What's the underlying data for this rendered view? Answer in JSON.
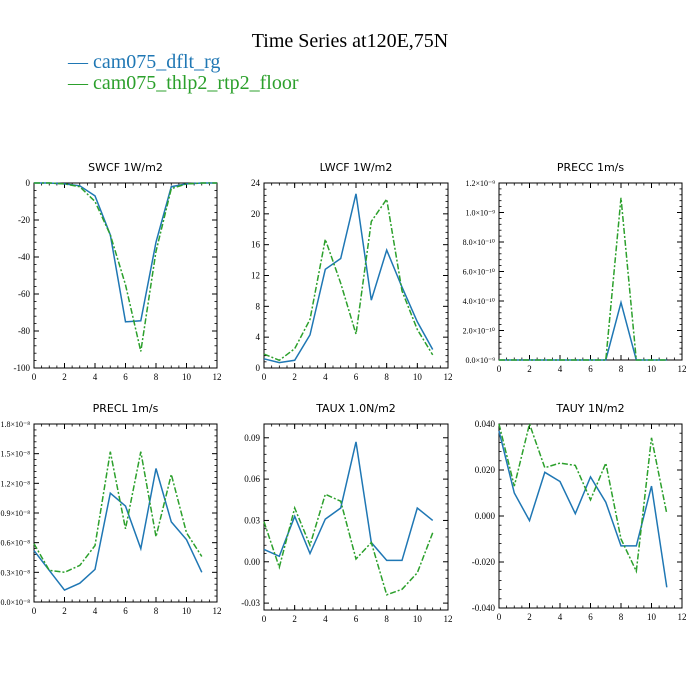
{
  "title": "Time Series at120E,75N",
  "legend": [
    {
      "label": "cam075_dflt_rg",
      "color": "#1f77b4"
    },
    {
      "label": "cam075_thlp2_rtp2_floor",
      "color": "#2ca02c"
    }
  ],
  "chart_data": [
    {
      "type": "line",
      "title": "SWCF",
      "units": "1W/m2",
      "xlim": [
        0,
        12
      ],
      "ylim": [
        -100,
        0
      ],
      "xticks": [
        0,
        2,
        4,
        6,
        8,
        10,
        12
      ],
      "yticks": [
        "-100",
        "-80",
        "-60",
        "-40",
        "-20",
        "0"
      ],
      "ytick_values": [
        -100,
        -80,
        -60,
        -40,
        -20,
        0
      ],
      "x": [
        0,
        1,
        2,
        3,
        4,
        5,
        6,
        7,
        8,
        9,
        10,
        11,
        12
      ],
      "series": [
        {
          "name": "cam075_dflt_rg",
          "values": [
            0,
            0,
            -0.5,
            -1.5,
            -7,
            -28,
            -75,
            -74.5,
            -32,
            -2,
            -0.5,
            0,
            0
          ]
        },
        {
          "name": "cam075_thlp2_rtp2_floor",
          "values": [
            0,
            0,
            -0.5,
            -2,
            -10,
            -28,
            -55,
            -91,
            -37,
            -3,
            -0.5,
            0,
            0
          ]
        }
      ]
    },
    {
      "type": "line",
      "title": "LWCF",
      "units": "1W/m2",
      "xlim": [
        0,
        12
      ],
      "ylim": [
        0,
        24
      ],
      "xticks": [
        0,
        2,
        4,
        6,
        8,
        10,
        12
      ],
      "yticks": [
        "0",
        "4",
        "8",
        "12",
        "16",
        "20",
        "24"
      ],
      "ytick_values": [
        0,
        4,
        8,
        12,
        16,
        20,
        24
      ],
      "x": [
        0,
        1,
        2,
        3,
        4,
        5,
        6,
        7,
        8,
        9,
        10,
        11
      ],
      "series": [
        {
          "name": "cam075_dflt_rg",
          "values": [
            1.2,
            0.7,
            1,
            4.3,
            12.8,
            14.2,
            22.6,
            8.8,
            15.3,
            10.5,
            6,
            2.4
          ]
        },
        {
          "name": "cam075_thlp2_rtp2_floor",
          "values": [
            1.8,
            1,
            2.5,
            6.3,
            16.7,
            11,
            4.4,
            19,
            21.9,
            10,
            5,
            1.7
          ]
        }
      ]
    },
    {
      "type": "line",
      "title": "PRECC",
      "units": "1m/s",
      "xlim": [
        0,
        12
      ],
      "ylim": [
        0,
        1.2e-09
      ],
      "xticks": [
        0,
        2,
        4,
        6,
        8,
        10,
        12
      ],
      "yticks": [
        "0.0×10⁻⁹",
        "2.0×10⁻¹⁰",
        "4.0×10⁻¹⁰",
        "6.0×10⁻¹⁰",
        "8.0×10⁻¹⁰",
        "1.0×10⁻⁹",
        "1.2×10⁻⁹"
      ],
      "ytick_values": [
        0,
        2e-10,
        4e-10,
        6e-10,
        8e-10,
        1e-09,
        1.2e-09
      ],
      "x": [
        0,
        1,
        2,
        3,
        4,
        5,
        6,
        7,
        8,
        9,
        10,
        11
      ],
      "series": [
        {
          "name": "cam075_dflt_rg",
          "values": [
            0,
            0,
            0,
            0,
            0,
            0,
            0,
            0,
            3.9e-10,
            0,
            0,
            0
          ]
        },
        {
          "name": "cam075_thlp2_rtp2_floor",
          "values": [
            0,
            0,
            0,
            0,
            0,
            0,
            0,
            0,
            1.1e-09,
            0,
            0,
            0
          ]
        }
      ]
    },
    {
      "type": "line",
      "title": "PRECL",
      "units": "1m/s",
      "xlim": [
        0,
        12
      ],
      "ylim": [
        0,
        1.8e-08
      ],
      "xticks": [
        0,
        2,
        4,
        6,
        8,
        10,
        12
      ],
      "yticks": [
        "0.0×10⁻⁸",
        "0.3×10⁻⁸",
        "0.6×10⁻⁸",
        "0.9×10⁻⁸",
        "1.2×10⁻⁸",
        "1.5×10⁻⁸",
        "1.8×10⁻⁸"
      ],
      "ytick_values": [
        0,
        3e-09,
        6e-09,
        9e-09,
        1.2e-08,
        1.5e-08,
        1.8e-08
      ],
      "x": [
        0,
        1,
        2,
        3,
        4,
        5,
        6,
        7,
        8,
        9,
        10,
        11
      ],
      "series": [
        {
          "name": "cam075_dflt_rg",
          "values": [
            5.2e-09,
            3.2e-09,
            1.2e-09,
            1.9e-09,
            3.3e-09,
            1.1e-08,
            9.7e-09,
            5.4e-09,
            1.35e-08,
            8.1e-09,
            6.3e-09,
            3e-09
          ]
        },
        {
          "name": "cam075_thlp2_rtp2_floor",
          "values": [
            5.9e-09,
            3.2e-09,
            3e-09,
            3.7e-09,
            5.7e-09,
            1.52e-08,
            7.4e-09,
            1.52e-08,
            6.6e-09,
            1.29e-08,
            7e-09,
            4.6e-09
          ]
        }
      ]
    },
    {
      "type": "line",
      "title": "TAUX",
      "units": "1.0N/m2",
      "xlim": [
        0,
        12
      ],
      "ylim": [
        -0.035,
        0.1
      ],
      "xticks": [
        0,
        2,
        4,
        6,
        8,
        10,
        12
      ],
      "yticks": [
        "-0.03",
        "0.00",
        "0.03",
        "0.06",
        "0.09"
      ],
      "ytick_values": [
        -0.03,
        0,
        0.03,
        0.06,
        0.09
      ],
      "x": [
        0,
        1,
        2,
        3,
        4,
        5,
        6,
        7,
        8,
        9,
        10,
        11
      ],
      "series": [
        {
          "name": "cam075_dflt_rg",
          "values": [
            0.009,
            0.004,
            0.033,
            0.006,
            0.031,
            0.039,
            0.087,
            0.014,
            0.001,
            0.001,
            0.039,
            0.03
          ]
        },
        {
          "name": "cam075_thlp2_rtp2_floor",
          "values": [
            0.029,
            -0.004,
            0.039,
            0.012,
            0.049,
            0.044,
            0.002,
            0.014,
            -0.024,
            -0.02,
            -0.008,
            0.021
          ]
        }
      ]
    },
    {
      "type": "line",
      "title": "TAUY",
      "units": "1N/m2",
      "xlim": [
        0,
        12
      ],
      "ylim": [
        -0.04,
        0.04
      ],
      "xticks": [
        0,
        2,
        4,
        6,
        8,
        10,
        12
      ],
      "yticks": [
        "-0.040",
        "-0.020",
        "0.000",
        "0.020",
        "0.040"
      ],
      "ytick_values": [
        -0.04,
        -0.02,
        0,
        0.02,
        0.04
      ],
      "x": [
        0,
        1,
        2,
        3,
        4,
        5,
        6,
        7,
        8,
        9,
        10,
        11
      ],
      "series": [
        {
          "name": "cam075_dflt_rg",
          "values": [
            0.037,
            0.01,
            -0.002,
            0.019,
            0.015,
            0.001,
            0.017,
            0.006,
            -0.013,
            -0.013,
            0.013,
            -0.031
          ]
        },
        {
          "name": "cam075_thlp2_rtp2_floor",
          "values": [
            0.04,
            0.013,
            0.04,
            0.021,
            0.023,
            0.022,
            0.007,
            0.023,
            -0.01,
            -0.024,
            0.034,
            0.001
          ]
        }
      ]
    }
  ]
}
